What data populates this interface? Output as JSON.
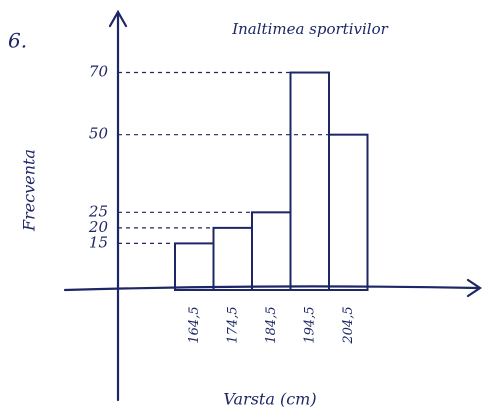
{
  "problem_number": "6.",
  "chart_data": {
    "type": "bar",
    "title": "Inaltimea sportivilor",
    "x_label": "Varsta (cm)",
    "y_label": "Frecventa",
    "categories": [
      "164,5",
      "174,5",
      "184,5",
      "194,5",
      "204,5"
    ],
    "values": [
      15,
      20,
      25,
      70,
      50
    ],
    "color": "#1d2766",
    "ylim": [
      0,
      75
    ],
    "yticks": [
      15,
      20,
      25,
      50,
      70
    ],
    "grid": true
  }
}
